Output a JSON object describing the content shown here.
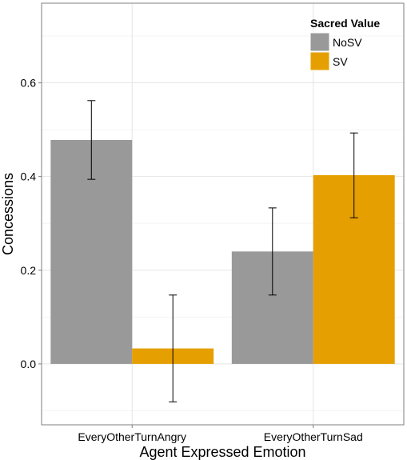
{
  "chart_data": {
    "type": "bar",
    "title": "",
    "xlabel": "Agent Expressed Emotion",
    "ylabel": "Concessions",
    "categories": [
      "EveryOtherTurnAngry",
      "EveryOtherTurnSad"
    ],
    "series": [
      {
        "name": "NoSV",
        "color": "#999999",
        "values": [
          0.478,
          0.24
        ],
        "error_low": [
          0.394,
          0.147
        ],
        "error_high": [
          0.562,
          0.333
        ]
      },
      {
        "name": "SV",
        "color": "#E69F00",
        "values": [
          0.033,
          0.403
        ],
        "error_low": [
          -0.081,
          0.312
        ],
        "error_high": [
          0.147,
          0.493
        ]
      }
    ],
    "yticks": [
      0.0,
      0.2,
      0.4,
      0.6
    ],
    "ytick_labels": [
      "0.0",
      "0.2",
      "0.4",
      "0.6"
    ],
    "ylim": [
      -0.13,
      0.77
    ],
    "grid": true,
    "legend": {
      "title": "Sacred Value",
      "placement": "top-right"
    }
  }
}
